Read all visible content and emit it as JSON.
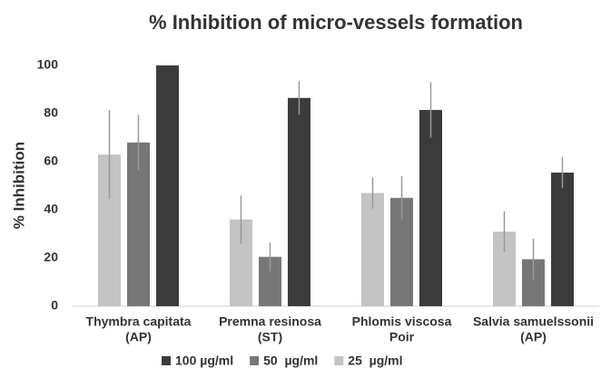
{
  "chart_data": {
    "type": "bar",
    "title": "% Inhibition of micro-vessels formation",
    "y_label": "% Inhibition",
    "categories": [
      [
        "Thymbra capitata",
        "(AP)"
      ],
      [
        "Premna resinosa",
        "(ST)"
      ],
      [
        "Phlomis viscosa",
        "Poir"
      ],
      [
        "Salvia samuelssonii",
        "(AP)"
      ]
    ],
    "series": [
      {
        "name": "100 µg/ml",
        "color": "#3b3b3b",
        "values": [
          100,
          86.5,
          81.5,
          55.5
        ],
        "errors": [
          0,
          7,
          11.5,
          6.5
        ]
      },
      {
        "name": "50  µg/ml",
        "color": "#777777",
        "values": [
          68,
          20.5,
          45,
          19.5
        ],
        "errors": [
          11.5,
          6,
          9,
          8.5
        ]
      },
      {
        "name": "25  µg/ml",
        "color": "#c3c3c3",
        "values": [
          63,
          36,
          47,
          31
        ],
        "errors": [
          18.5,
          10,
          6.5,
          8.5
        ]
      }
    ],
    "ylim": [
      0,
      100
    ],
    "yticks": [
      0,
      20,
      40,
      60,
      80,
      100
    ],
    "grid": false
  }
}
